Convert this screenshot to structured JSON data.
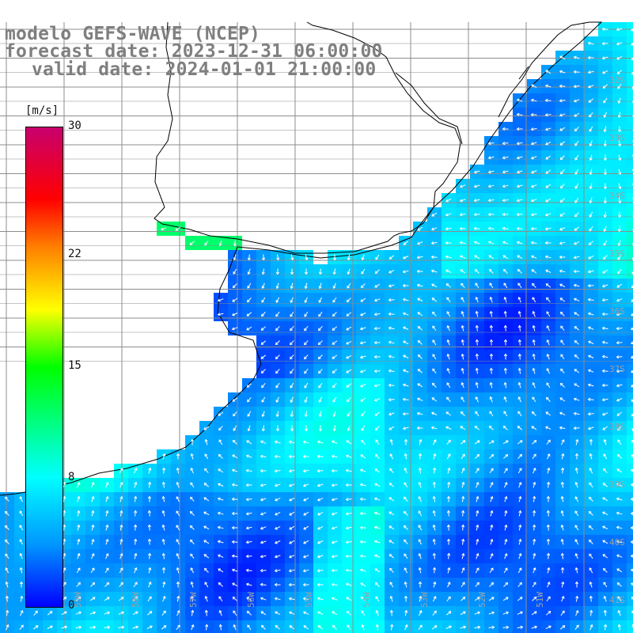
{
  "title": {
    "line1": "modelo GEFS-WAVE (NCEP)",
    "line2": "forecast date: 2023-12-31 06:00:00",
    "line3": "valid date: 2024-01-01 21:00:00"
  },
  "colorbar": {
    "unit": "[m/s]",
    "min": 0,
    "max": 30,
    "ticks": [
      "30",
      "22",
      "15",
      "8",
      "0"
    ],
    "tick_values": [
      30,
      22,
      15,
      8,
      0
    ]
  },
  "lat_labels": [
    "32S",
    "33S",
    "34S",
    "35S",
    "36S",
    "37S",
    "38S",
    "39S",
    "40S",
    "41S"
  ],
  "lon_labels": [
    "59W",
    "58W",
    "57W",
    "56W",
    "55W",
    "54W",
    "53W",
    "52W",
    "51W"
  ],
  "colors": {
    "grid": "#8c8c8c",
    "land": "#ffffff",
    "coast": "#000000",
    "arrows": "#ffffff",
    "title": "#7f7f7f"
  }
}
